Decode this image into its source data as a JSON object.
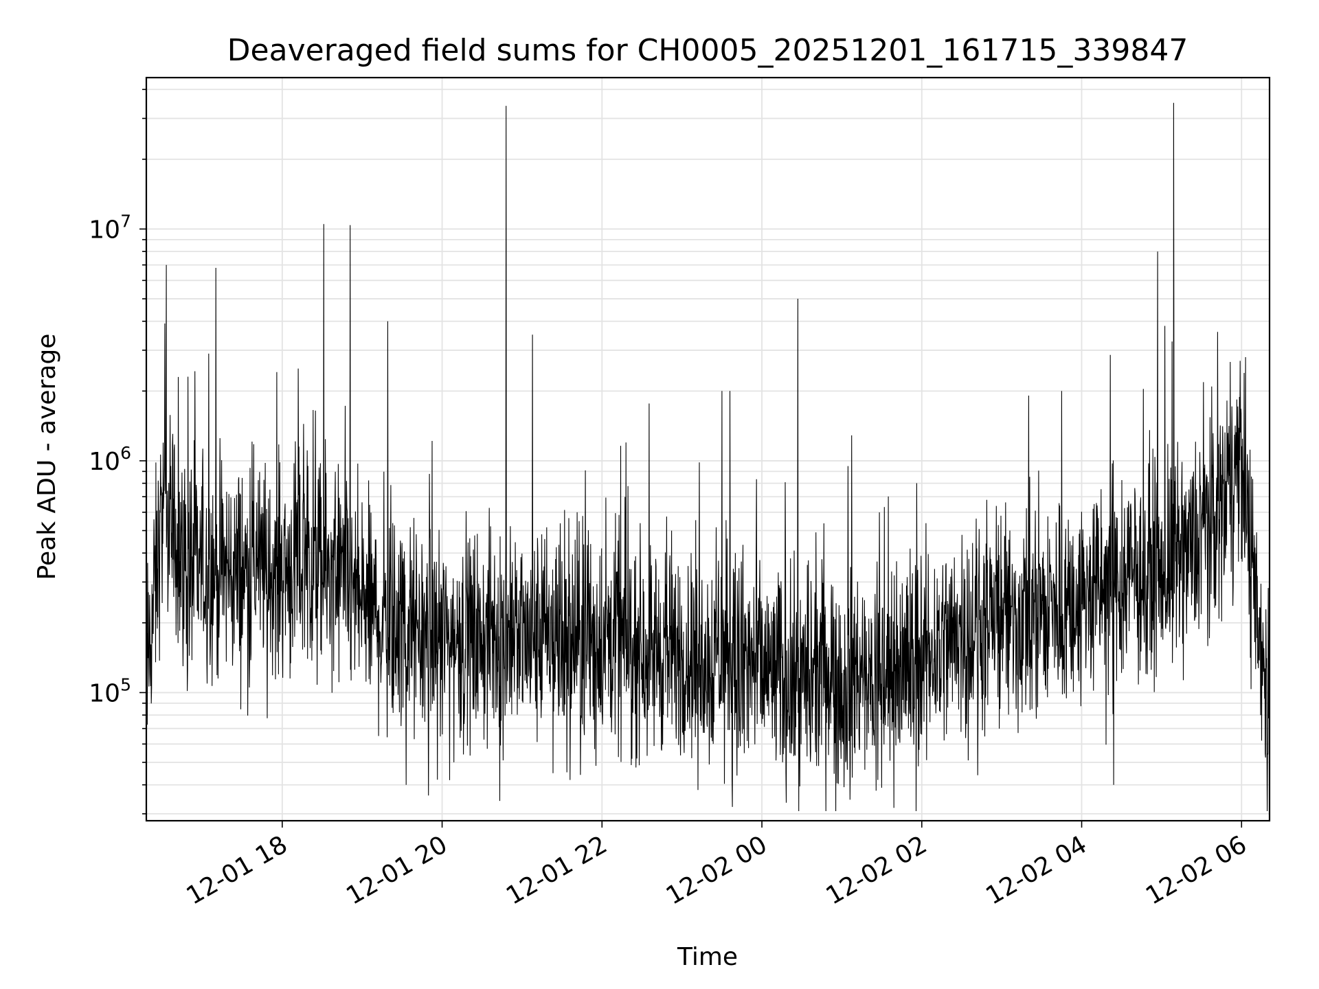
{
  "chart_data": {
    "type": "line",
    "title": "Deaveraged field sums for CH0005_20251201_161715_339847",
    "xlabel": "Time",
    "ylabel": "Peak ADU - average",
    "yscale": "log",
    "ylim": [
      28000,
      45000000
    ],
    "xlim_hours": [
      -1.7,
      12.35
    ],
    "grid": true,
    "x_ticks": [
      {
        "hour": 0,
        "label": "12-01 18"
      },
      {
        "hour": 2,
        "label": "12-01 20"
      },
      {
        "hour": 4,
        "label": "12-01 22"
      },
      {
        "hour": 6,
        "label": "12-02 00"
      },
      {
        "hour": 8,
        "label": "12-02 02"
      },
      {
        "hour": 10,
        "label": "12-02 04"
      },
      {
        "hour": 12,
        "label": "12-02 06"
      }
    ],
    "y_ticks": [
      {
        "value": 100000,
        "base": "10",
        "exp": "5"
      },
      {
        "value": 1000000,
        "base": "10",
        "exp": "6"
      },
      {
        "value": 10000000,
        "base": "10",
        "exp": "7"
      }
    ],
    "series": [
      {
        "name": "Peak ADU - average",
        "color": "#000000",
        "baseline": [
          [
            -1.7,
            110000
          ],
          [
            -1.5,
            600000
          ],
          [
            -1.2,
            350000
          ],
          [
            -0.5,
            330000
          ],
          [
            0.3,
            360000
          ],
          [
            0.8,
            280000
          ],
          [
            1.3,
            200000
          ],
          [
            2.0,
            170000
          ],
          [
            3.0,
            170000
          ],
          [
            4.0,
            170000
          ],
          [
            5.5,
            140000
          ],
          [
            6.5,
            110000
          ],
          [
            7.5,
            115000
          ],
          [
            8.5,
            180000
          ],
          [
            9.5,
            220000
          ],
          [
            10.5,
            300000
          ],
          [
            11.3,
            380000
          ],
          [
            11.8,
            700000
          ],
          [
            12.0,
            1100000
          ],
          [
            12.1,
            400000
          ],
          [
            12.35,
            85000
          ]
        ],
        "spikes": [
          [
            -1.45,
            7000000
          ],
          [
            -0.83,
            6800000
          ],
          [
            -0.92,
            2900000
          ],
          [
            0.52,
            10500000
          ],
          [
            0.85,
            10400000
          ],
          [
            1.32,
            4000000
          ],
          [
            2.8,
            34000000
          ],
          [
            3.13,
            3500000
          ],
          [
            5.5,
            2000000
          ],
          [
            5.6,
            2000000
          ],
          [
            6.45,
            5000000
          ],
          [
            10.95,
            8000000
          ],
          [
            11.15,
            35000000
          ],
          [
            11.7,
            3600000
          ],
          [
            12.05,
            2800000
          ],
          [
            4.3,
            1200000
          ],
          [
            -1.3,
            2300000
          ],
          [
            0.2,
            2500000
          ],
          [
            9.75,
            2000000
          ]
        ],
        "dips": [
          [
            1.55,
            40000
          ],
          [
            5.2,
            38000
          ],
          [
            3.6,
            42000
          ],
          [
            10.4,
            40000
          ],
          [
            7.45,
            42000
          ],
          [
            6.3,
            45000
          ],
          [
            8.7,
            44000
          ]
        ]
      }
    ]
  }
}
